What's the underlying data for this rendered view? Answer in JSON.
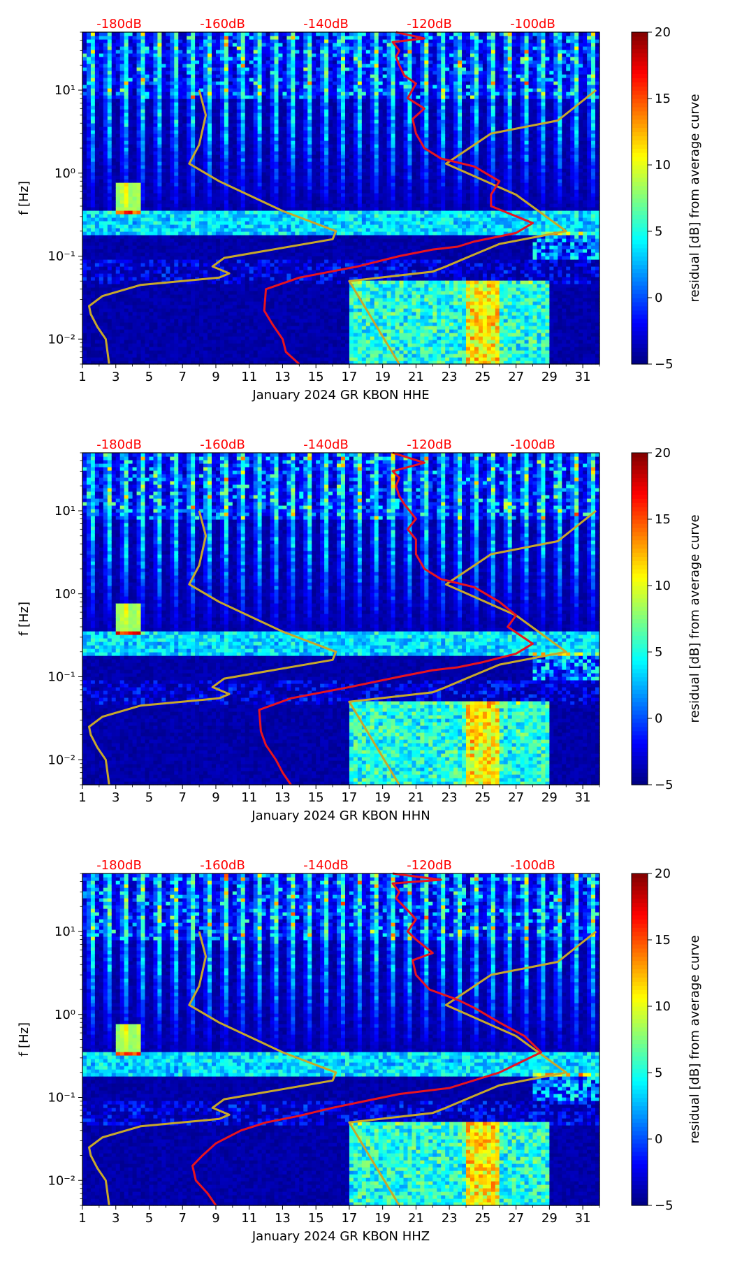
{
  "colors": {
    "colormap": [
      "#00007f",
      "#0000ff",
      "#007fff",
      "#00ffff",
      "#7fff7f",
      "#ffff00",
      "#ff7f00",
      "#ff0000",
      "#7f0000"
    ],
    "noise_model": "#c8a82a",
    "ppsd_curve": "#e8141e",
    "db_labels": "#ff0000",
    "axis": "#000000"
  },
  "chart_data": [
    {
      "type": "heatmap",
      "xlabel": "January 2024 GR KBON  HHE",
      "ylabel": "f [Hz]",
      "xlim": [
        1,
        32
      ],
      "ylim": [
        0.005,
        50
      ],
      "y_scale": "log",
      "x_ticks": [
        "1",
        "3",
        "5",
        "7",
        "9",
        "11",
        "13",
        "15",
        "17",
        "19",
        "21",
        "23",
        "25",
        "27",
        "29",
        "31"
      ],
      "y_ticks": [
        "10⁻²",
        "10⁻¹",
        "10⁰",
        "10¹"
      ],
      "top_labels": [
        "-180dB",
        "-160dB",
        "-140dB",
        "-120dB",
        "-100dB"
      ],
      "colorbar": {
        "label": "residual [dB] from average curve",
        "range": [
          -5,
          20
        ],
        "ticks": [
          "−5",
          "0",
          "5",
          "10",
          "15",
          "20"
        ]
      },
      "noise_model_curve": {
        "x": [
          2.6,
          2.4,
          1.9,
          1.5,
          1.4,
          2.2,
          4.5,
          9.2,
          9.8,
          8.8,
          9.5,
          16.0,
          16.2,
          13.0,
          9.2,
          7.4,
          8.0,
          8.4,
          8.0
        ],
        "f": [
          0.005,
          0.01,
          0.014,
          0.02,
          0.025,
          0.033,
          0.045,
          0.055,
          0.062,
          0.075,
          0.095,
          0.16,
          0.2,
          0.35,
          0.8,
          1.3,
          2.2,
          5,
          10
        ]
      },
      "noise_model_curve_2": {
        "x": [
          20.0,
          17.0,
          22.0,
          22.8,
          24.0,
          26.0,
          30.0,
          27.0,
          22.8,
          25.5,
          29.5,
          31.8
        ],
        "f": [
          0.005,
          0.05,
          0.065,
          0.075,
          0.095,
          0.14,
          0.2,
          0.55,
          1.3,
          3.0,
          4.3,
          10
        ]
      },
      "ppsd_curve": {
        "x": [
          14.0,
          13.2,
          13.0,
          12.4,
          11.9,
          12.0,
          14.0,
          17.5,
          20.0,
          22.0,
          23.5,
          24.5,
          27.0,
          28.0,
          25.5,
          25.5,
          26.0,
          24.5,
          22.5,
          21.5,
          21.0,
          20.8,
          21.5,
          20.5,
          21.0,
          20.3,
          20.0,
          19.8,
          20.0,
          19.6,
          21.5,
          19.8
        ],
        "f": [
          0.005,
          0.007,
          0.01,
          0.015,
          0.022,
          0.04,
          0.055,
          0.075,
          0.1,
          0.12,
          0.13,
          0.15,
          0.19,
          0.25,
          0.4,
          0.55,
          0.8,
          1.2,
          1.5,
          2.0,
          3.0,
          4.5,
          6.0,
          8.0,
          12.0,
          15.0,
          20.0,
          25.0,
          30.0,
          38.0,
          42.0,
          50.0
        ]
      }
    },
    {
      "type": "heatmap",
      "xlabel": "January 2024 GR KBON  HHN",
      "ylabel": "f [Hz]",
      "xlim": [
        1,
        32
      ],
      "ylim": [
        0.005,
        50
      ],
      "y_scale": "log",
      "x_ticks": [
        "1",
        "3",
        "5",
        "7",
        "9",
        "11",
        "13",
        "15",
        "17",
        "19",
        "21",
        "23",
        "25",
        "27",
        "29",
        "31"
      ],
      "y_ticks": [
        "10⁻²",
        "10⁻¹",
        "10⁰",
        "10¹"
      ],
      "top_labels": [
        "-180dB",
        "-160dB",
        "-140dB",
        "-120dB",
        "-100dB"
      ],
      "colorbar": {
        "label": "residual [dB] from average curve",
        "range": [
          -5,
          20
        ],
        "ticks": [
          "−5",
          "0",
          "5",
          "10",
          "15",
          "20"
        ]
      },
      "noise_model_curve": {
        "x": [
          2.6,
          2.4,
          1.9,
          1.5,
          1.4,
          2.2,
          4.5,
          9.2,
          9.8,
          8.8,
          9.5,
          16.0,
          16.2,
          13.0,
          9.2,
          7.4,
          8.0,
          8.4,
          8.0
        ],
        "f": [
          0.005,
          0.01,
          0.014,
          0.02,
          0.025,
          0.033,
          0.045,
          0.055,
          0.062,
          0.075,
          0.095,
          0.16,
          0.2,
          0.35,
          0.8,
          1.3,
          2.2,
          5,
          10
        ]
      },
      "noise_model_curve_2": {
        "x": [
          20.0,
          17.0,
          22.0,
          22.8,
          24.0,
          26.0,
          30.0,
          27.0,
          22.8,
          25.5,
          29.5,
          31.8
        ],
        "f": [
          0.005,
          0.05,
          0.065,
          0.075,
          0.095,
          0.14,
          0.2,
          0.55,
          1.3,
          3.0,
          4.3,
          10
        ]
      },
      "ppsd_curve": {
        "x": [
          13.5,
          13.0,
          12.6,
          12.0,
          11.7,
          11.6,
          13.5,
          17.0,
          20.0,
          22.0,
          23.5,
          25.0,
          27.0,
          28.0,
          26.5,
          27.0,
          26.0,
          24.5,
          22.5,
          21.5,
          21.0,
          21.0,
          20.5,
          21.0,
          20.3,
          20.0,
          19.8,
          20.0,
          19.6,
          21.5,
          19.6
        ],
        "f": [
          0.005,
          0.007,
          0.01,
          0.015,
          0.022,
          0.04,
          0.055,
          0.075,
          0.1,
          0.12,
          0.13,
          0.15,
          0.19,
          0.25,
          0.4,
          0.55,
          0.8,
          1.2,
          1.5,
          2.0,
          3.0,
          4.5,
          6.0,
          8.0,
          12.0,
          15.0,
          20.0,
          25.0,
          30.0,
          38.0,
          50.0
        ]
      }
    },
    {
      "type": "heatmap",
      "xlabel": "January 2024 GR KBON  HHZ",
      "ylabel": "f [Hz]",
      "xlim": [
        1,
        32
      ],
      "ylim": [
        0.005,
        50
      ],
      "y_scale": "log",
      "x_ticks": [
        "1",
        "3",
        "5",
        "7",
        "9",
        "11",
        "13",
        "15",
        "17",
        "19",
        "21",
        "23",
        "25",
        "27",
        "29",
        "31"
      ],
      "y_ticks": [
        "10⁻²",
        "10⁻¹",
        "10⁰",
        "10¹"
      ],
      "top_labels": [
        "-180dB",
        "-160dB",
        "-140dB",
        "-120dB",
        "-100dB"
      ],
      "colorbar": {
        "label": "residual [dB] from average curve",
        "range": [
          -5,
          20
        ],
        "ticks": [
          "−5",
          "0",
          "5",
          "10",
          "15",
          "20"
        ]
      },
      "noise_model_curve": {
        "x": [
          2.6,
          2.4,
          1.9,
          1.5,
          1.4,
          2.2,
          4.5,
          9.2,
          9.8,
          8.8,
          9.5,
          16.0,
          16.2,
          13.0,
          9.2,
          7.4,
          8.0,
          8.4,
          8.0
        ],
        "f": [
          0.005,
          0.01,
          0.014,
          0.02,
          0.025,
          0.033,
          0.045,
          0.055,
          0.062,
          0.075,
          0.095,
          0.16,
          0.2,
          0.35,
          0.8,
          1.3,
          2.2,
          5,
          10
        ]
      },
      "noise_model_curve_2": {
        "x": [
          20.0,
          17.0,
          22.0,
          22.8,
          24.0,
          26.0,
          30.0,
          27.0,
          22.8,
          25.5,
          29.5,
          31.8
        ],
        "f": [
          0.005,
          0.05,
          0.065,
          0.075,
          0.095,
          0.14,
          0.2,
          0.55,
          1.3,
          3.0,
          4.3,
          10
        ]
      },
      "ppsd_curve": {
        "x": [
          9.0,
          8.5,
          7.8,
          7.6,
          8.2,
          9.0,
          10.5,
          12.0,
          14.0,
          16.0,
          20.0,
          23.0,
          26.0,
          28.5,
          27.5,
          26.0,
          24.5,
          23.5,
          21.8,
          21.0,
          20.8,
          22.0,
          21.0,
          20.5,
          21.0,
          20.5,
          19.8,
          20.0,
          19.6,
          22.5,
          19.6
        ],
        "f": [
          0.005,
          0.007,
          0.01,
          0.015,
          0.02,
          0.028,
          0.04,
          0.05,
          0.06,
          0.075,
          0.11,
          0.13,
          0.2,
          0.35,
          0.55,
          0.8,
          1.2,
          1.5,
          2.0,
          3.0,
          4.5,
          5.5,
          8.0,
          10.0,
          14.0,
          18.0,
          25.0,
          30.0,
          38.0,
          42.0,
          50.0
        ]
      }
    }
  ]
}
